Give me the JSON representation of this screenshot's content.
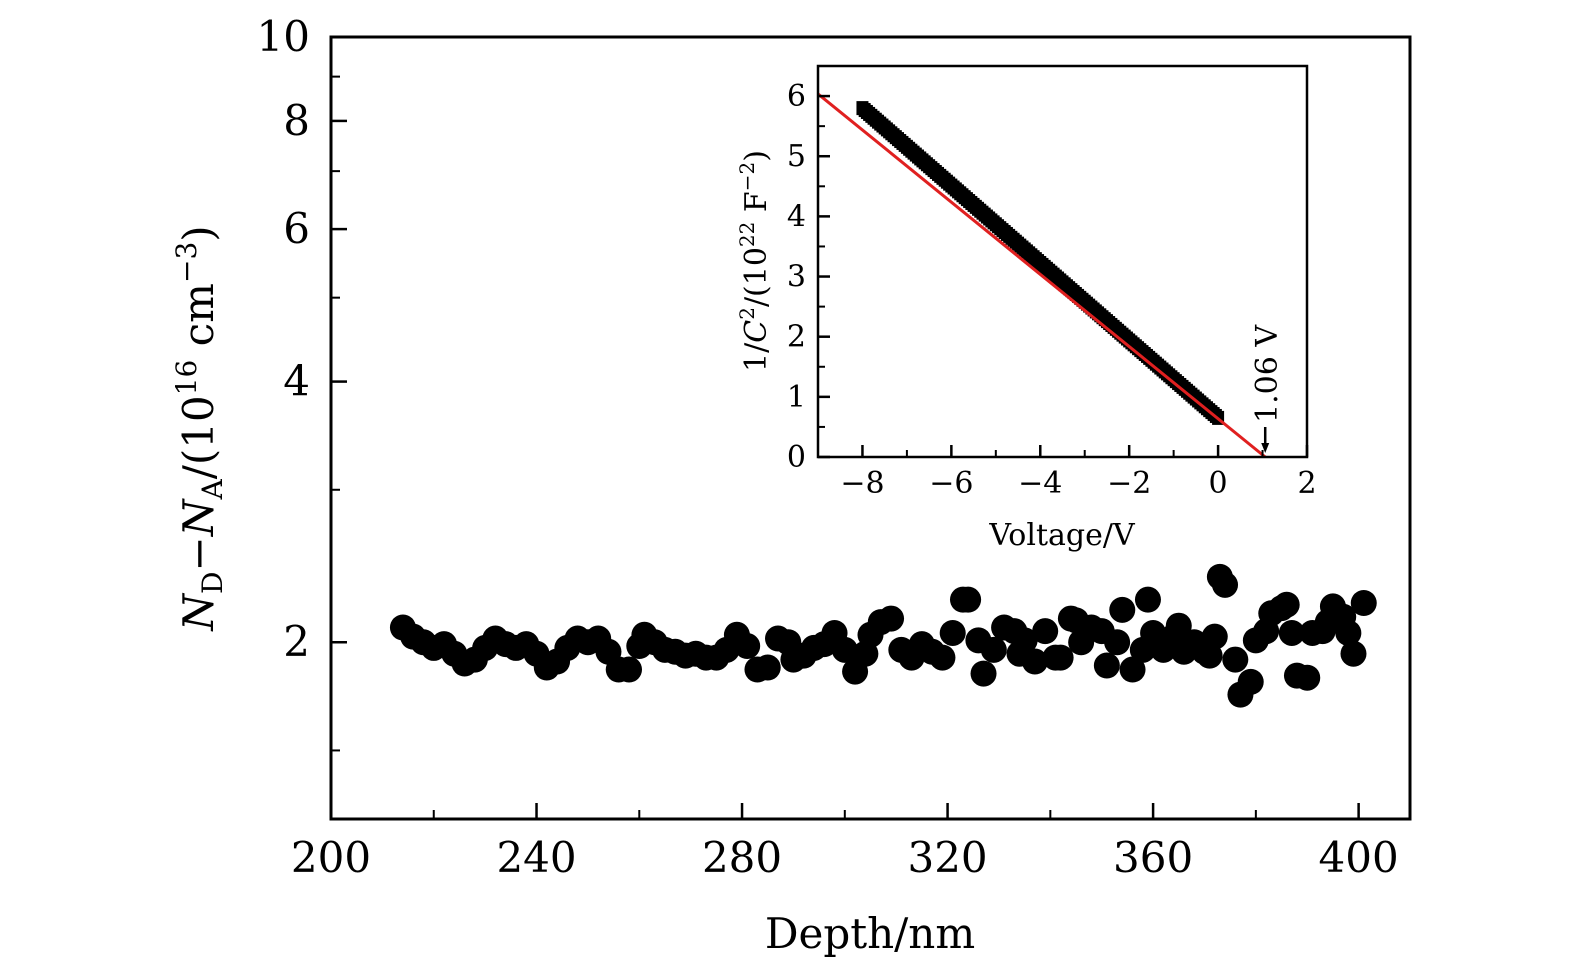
{
  "chart_data": [
    {
      "type": "scatter",
      "name": "main",
      "xlabel": "Depth/nm",
      "ylabel": {
        "base1": "N",
        "sub1": "D",
        "minus": "−",
        "base2": "N",
        "sub2": "A",
        "unit_open": "/(10",
        "unit_exp": "16",
        "unit_mid": " cm",
        "unit_exp2": "−3",
        "unit_close": ")"
      },
      "xlim": [
        200,
        410
      ],
      "ylim": [
        1.25,
        10
      ],
      "yscale": "log",
      "xticks": [
        "200",
        "240",
        "280",
        "320",
        "360",
        "400"
      ],
      "xtick_values": [
        200,
        240,
        280,
        320,
        360,
        400
      ],
      "yticks": [
        "2",
        "4",
        "6",
        "8",
        "10"
      ],
      "ytick_values": [
        2,
        4,
        6,
        8,
        10
      ],
      "grid": false,
      "marker_color": "#000000",
      "points": [
        [
          214,
          2.08
        ],
        [
          216,
          2.03
        ],
        [
          218,
          2.0
        ],
        [
          220,
          1.97
        ],
        [
          222,
          1.99
        ],
        [
          224,
          1.94
        ],
        [
          226,
          1.89
        ],
        [
          228,
          1.91
        ],
        [
          230,
          1.97
        ],
        [
          232,
          2.02
        ],
        [
          234,
          1.99
        ],
        [
          236,
          1.97
        ],
        [
          238,
          1.99
        ],
        [
          240,
          1.94
        ],
        [
          242,
          1.87
        ],
        [
          244,
          1.9
        ],
        [
          246,
          1.97
        ],
        [
          248,
          2.02
        ],
        [
          250,
          2.0
        ],
        [
          252,
          2.02
        ],
        [
          254,
          1.95
        ],
        [
          256,
          1.86
        ],
        [
          258,
          1.86
        ],
        [
          260,
          1.98
        ],
        [
          261,
          2.04
        ],
        [
          263,
          2.0
        ],
        [
          265,
          1.96
        ],
        [
          267,
          1.95
        ],
        [
          269,
          1.93
        ],
        [
          271,
          1.94
        ],
        [
          273,
          1.92
        ],
        [
          275,
          1.92
        ],
        [
          277,
          1.96
        ],
        [
          279,
          2.04
        ],
        [
          281,
          1.98
        ],
        [
          283,
          1.86
        ],
        [
          285,
          1.87
        ],
        [
          287,
          2.02
        ],
        [
          289,
          2.0
        ],
        [
          290,
          1.91
        ],
        [
          292,
          1.93
        ],
        [
          294,
          1.97
        ],
        [
          296,
          1.99
        ],
        [
          298,
          2.05
        ],
        [
          300,
          1.96
        ],
        [
          302,
          1.85
        ],
        [
          304,
          1.94
        ],
        [
          305,
          2.04
        ],
        [
          307,
          2.11
        ],
        [
          309,
          2.13
        ],
        [
          311,
          1.96
        ],
        [
          313,
          1.92
        ],
        [
          315,
          1.99
        ],
        [
          317,
          1.95
        ],
        [
          319,
          1.92
        ],
        [
          321,
          2.05
        ],
        [
          323,
          2.24
        ],
        [
          324,
          2.24
        ],
        [
          326,
          2.01
        ],
        [
          327,
          1.84
        ],
        [
          329,
          1.96
        ],
        [
          331,
          2.08
        ],
        [
          333,
          2.06
        ],
        [
          334,
          1.94
        ],
        [
          335,
          2.01
        ],
        [
          337,
          1.9
        ],
        [
          339,
          2.06
        ],
        [
          341,
          1.92
        ],
        [
          342,
          1.92
        ],
        [
          344,
          2.13
        ],
        [
          345,
          2.12
        ],
        [
          346,
          2.0
        ],
        [
          348,
          2.08
        ],
        [
          350,
          2.06
        ],
        [
          351,
          1.88
        ],
        [
          353,
          2.0
        ],
        [
          354,
          2.18
        ],
        [
          356,
          1.86
        ],
        [
          358,
          1.96
        ],
        [
          359,
          2.24
        ],
        [
          360,
          2.05
        ],
        [
          362,
          1.96
        ],
        [
          364,
          2.03
        ],
        [
          365,
          2.09
        ],
        [
          366,
          1.95
        ],
        [
          368,
          2.0
        ],
        [
          370,
          1.95
        ],
        [
          371,
          1.93
        ],
        [
          372,
          2.03
        ],
        [
          373,
          2.38
        ],
        [
          374,
          2.33
        ],
        [
          376,
          1.91
        ],
        [
          377,
          1.74
        ],
        [
          379,
          1.8
        ],
        [
          380,
          2.01
        ],
        [
          382,
          2.06
        ],
        [
          383,
          2.16
        ],
        [
          385,
          2.19
        ],
        [
          386,
          2.21
        ],
        [
          387,
          2.05
        ],
        [
          388,
          1.83
        ],
        [
          390,
          1.82
        ],
        [
          391,
          2.05
        ],
        [
          393,
          2.06
        ],
        [
          394,
          2.11
        ],
        [
          395,
          2.2
        ],
        [
          397,
          2.14
        ],
        [
          398,
          2.05
        ],
        [
          399,
          1.94
        ],
        [
          401,
          2.22
        ]
      ]
    },
    {
      "type": "scatter",
      "name": "inset",
      "xlabel": "Voltage/V",
      "ylabel": {
        "pre": "1/",
        "var": "C",
        "sup": "2",
        "open": "/(10",
        "exp": "22",
        "mid": " F",
        "exp2": "−2",
        "close": ")"
      },
      "xlim": [
        -9,
        2
      ],
      "ylim": [
        0,
        6.5
      ],
      "xticks": [
        "−8",
        "−6",
        "−4",
        "−2",
        "0",
        "2"
      ],
      "xtick_values": [
        -8,
        -6,
        -4,
        -2,
        0,
        2
      ],
      "yticks": [
        "0",
        "1",
        "2",
        "3",
        "4",
        "5",
        "6"
      ],
      "ytick_values": [
        0,
        1,
        2,
        3,
        4,
        5,
        6
      ],
      "grid": false,
      "data_range": {
        "x_start": -8,
        "x_end": 0,
        "y_start": 5.8,
        "y_end": 0.65
      },
      "fit": {
        "x_intercept": 1.06,
        "slope": -0.6,
        "color": "#e02020"
      },
      "annotation": {
        "text": "1.06 V",
        "x": 1.06,
        "y": 0
      }
    }
  ]
}
